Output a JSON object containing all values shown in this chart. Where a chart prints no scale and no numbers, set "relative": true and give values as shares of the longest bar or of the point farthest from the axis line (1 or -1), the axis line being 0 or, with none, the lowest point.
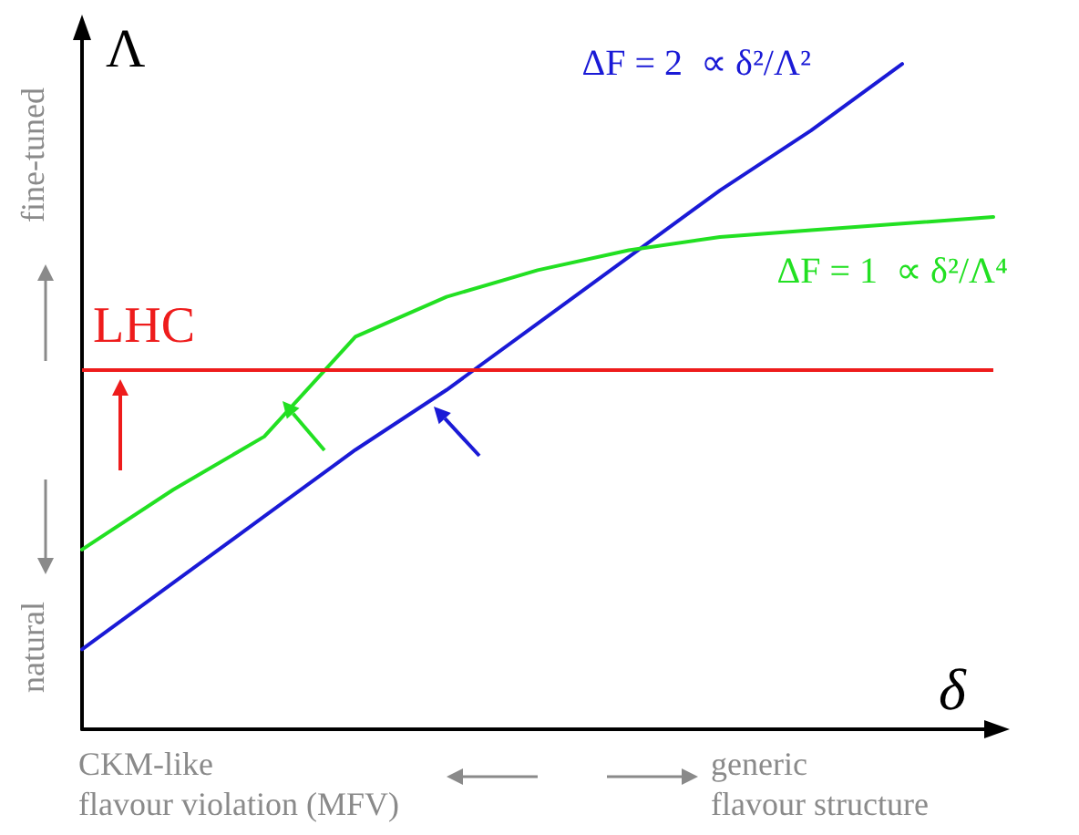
{
  "chart_data": {
    "type": "line",
    "relative": true,
    "xlabel": "δ",
    "ylabel": "Λ",
    "categories": [
      null,
      null,
      null,
      null,
      null,
      null,
      null,
      null,
      null,
      null,
      null
    ],
    "series": [
      {
        "name": "ΔF = 2  ∝ δ²/Λ²",
        "color": "#1a1ad6",
        "values": [
          0.12,
          0.22,
          0.32,
          0.42,
          0.51,
          0.61,
          0.71,
          0.81,
          0.9,
          1.0,
          null
        ]
      },
      {
        "name": "ΔF = 1  ∝ δ²/Λ⁴",
        "color": "#22e022",
        "values": [
          0.27,
          0.36,
          0.44,
          0.59,
          0.65,
          0.69,
          0.72,
          0.74,
          0.75,
          0.76,
          0.77
        ]
      }
    ],
    "ref_lines": [
      {
        "axis": "y",
        "value": 0.54,
        "label": "LHC",
        "color": "#ee1c1c"
      }
    ],
    "annotations": [
      "fine-tuned",
      "natural",
      "CKM-like\nflavour violation (MFV)",
      "generic\nflavour structure"
    ],
    "legend": false,
    "grid": false,
    "marker": "none",
    "line_style": "solid"
  }
}
